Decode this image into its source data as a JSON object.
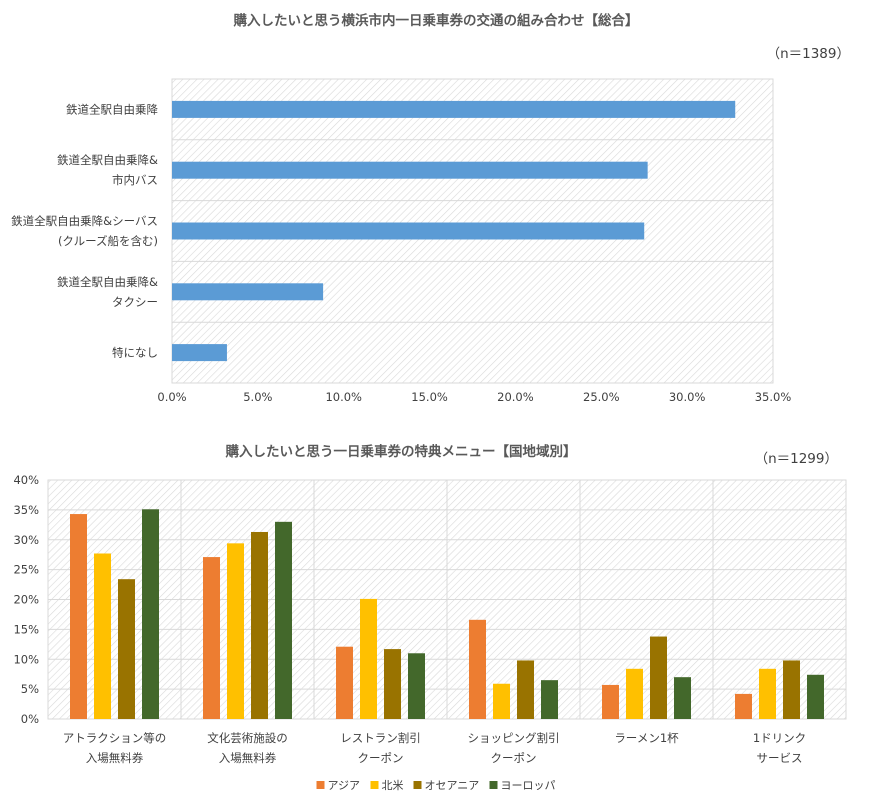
{
  "chart_data": [
    {
      "type": "bar",
      "orientation": "horizontal",
      "title": "購入したいと思う横浜市内一日乗車券の交通の組み合わせ【総合】",
      "note": "（n＝1389）",
      "categories": [
        [
          "鉄道全駅自由乗降"
        ],
        [
          "鉄道全駅自由乗降&",
          "市内バス"
        ],
        [
          "鉄道全駅自由乗降&シーバス",
          "(クルーズ船を含む)"
        ],
        [
          "鉄道全駅自由乗降&",
          "タクシー"
        ],
        [
          "特になし"
        ]
      ],
      "values": [
        32.8,
        27.7,
        27.5,
        8.8,
        3.2
      ],
      "xlim": [
        0,
        35
      ],
      "xticks": [
        "0.0%",
        "5.0%",
        "10.0%",
        "15.0%",
        "20.0%",
        "25.0%",
        "30.0%",
        "35.0%"
      ],
      "color": "#5b9bd5",
      "grid": true
    },
    {
      "type": "bar",
      "title": "購入したいと思う一日乗車券の特典メニュー【国地域別】",
      "note": "（n＝1299）",
      "categories": [
        [
          "アトラクション等の",
          "入場無料券"
        ],
        [
          "文化芸術施設の",
          "入場無料券"
        ],
        [
          "レストラン割引",
          "クーポン"
        ],
        [
          "ショッピング割引",
          "クーポン"
        ],
        [
          "ラーメン1杯"
        ],
        [
          "1ドリンク",
          "サービス"
        ]
      ],
      "series": [
        {
          "name": "アジア",
          "color": "#ed7d31",
          "values": [
            34.3,
            27.1,
            12.1,
            16.6,
            5.7,
            4.2
          ]
        },
        {
          "name": "北米",
          "color": "#ffc000",
          "values": [
            27.7,
            29.4,
            20.1,
            5.9,
            8.4,
            8.4
          ]
        },
        {
          "name": "オセアニア",
          "color": "#997300",
          "values": [
            23.4,
            31.3,
            11.7,
            9.8,
            13.8,
            9.8
          ]
        },
        {
          "name": "ヨーロッパ",
          "color": "#43682b",
          "values": [
            35.1,
            33.0,
            11.0,
            6.5,
            7.0,
            7.4
          ]
        }
      ],
      "ylim": [
        0,
        40
      ],
      "yticks": [
        "0%",
        "5%",
        "10%",
        "15%",
        "20%",
        "25%",
        "30%",
        "35%",
        "40%"
      ],
      "legend": "bottom",
      "grid": true
    }
  ]
}
